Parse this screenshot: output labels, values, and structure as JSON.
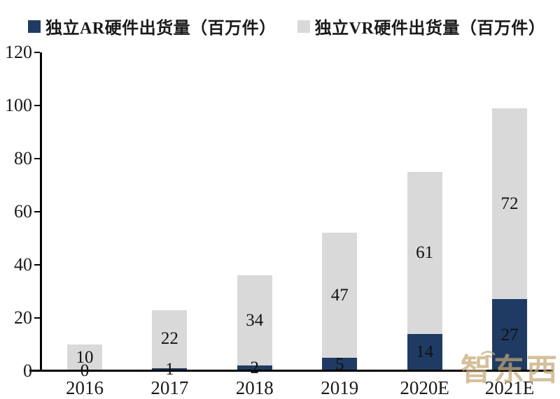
{
  "watermark": {
    "text": "智东西",
    "icon": "wifi-icon",
    "color": "#C4A875"
  },
  "colors": {
    "axis": "#000000",
    "value_label": "#111111"
  },
  "chart_data": {
    "type": "bar",
    "stacked": true,
    "title": "",
    "xlabel": "",
    "ylabel": "",
    "categories": [
      "2016",
      "2017",
      "2018",
      "2019",
      "2020E",
      "2021E"
    ],
    "series": [
      {
        "name": "独立AR硬件出货量（百万件）",
        "color": "#1F3B63",
        "values": [
          0,
          1,
          2,
          5,
          14,
          27
        ]
      },
      {
        "name": "独立VR硬件出货量（百万件）",
        "color": "#D9D9D9",
        "values": [
          10,
          22,
          34,
          47,
          61,
          72
        ]
      }
    ],
    "totals": [
      10,
      23,
      36,
      52,
      75,
      99
    ],
    "ylim": [
      0,
      120
    ],
    "ytick_step": 20,
    "yticks": [
      0,
      20,
      40,
      60,
      80,
      100,
      120
    ],
    "grid": false,
    "legend_position": "top",
    "value_labels": true
  }
}
